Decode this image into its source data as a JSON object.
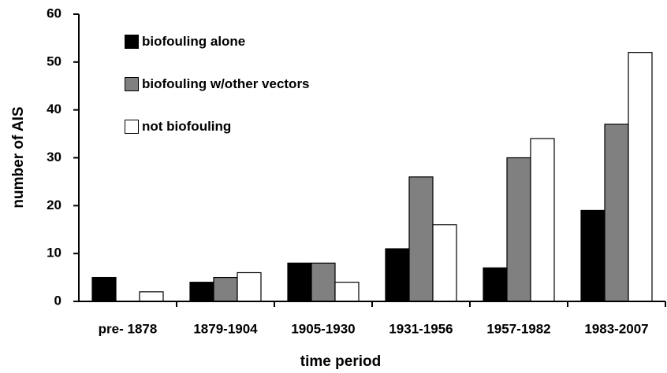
{
  "chart_data": {
    "type": "bar",
    "categories": [
      "pre- 1878",
      "1879-1904",
      "1905-1930",
      "1931-1956",
      "1957-1982",
      "1983-2007"
    ],
    "series": [
      {
        "name": "biofouling alone",
        "color": "#000000",
        "values": [
          5,
          4,
          8,
          11,
          7,
          19
        ]
      },
      {
        "name": "biofouling w/other vectors",
        "color": "#808080",
        "values": [
          0,
          5,
          8,
          26,
          30,
          37
        ]
      },
      {
        "name": "not biofouling",
        "color": "#ffffff",
        "values": [
          2,
          6,
          4,
          16,
          34,
          52
        ]
      }
    ],
    "xlabel": "time period",
    "ylabel": "number of AIS",
    "ylim": [
      0,
      60
    ],
    "yticks": [
      0,
      10,
      20,
      30,
      40,
      50,
      60
    ],
    "grid": false,
    "legend": "upper left"
  }
}
